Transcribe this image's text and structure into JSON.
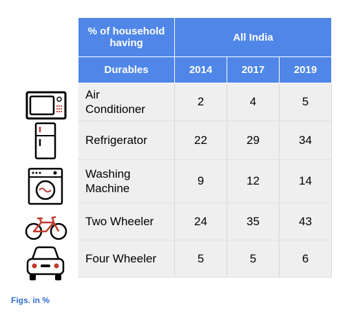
{
  "header": {
    "corner_label": "% of household having",
    "group_label": "All India",
    "durables_label": "Durables",
    "years": [
      "2014",
      "2017",
      "2019"
    ]
  },
  "rows": [
    {
      "name": "Air Conditioner",
      "values": [
        "2",
        "4",
        "5"
      ],
      "icon": "air-conditioner-icon"
    },
    {
      "name": "Refrigerator",
      "values": [
        "22",
        "29",
        "34"
      ],
      "icon": "refrigerator-icon"
    },
    {
      "name": "Washing Machine",
      "values": [
        "9",
        "12",
        "14"
      ],
      "icon": "washing-machine-icon"
    },
    {
      "name": "Two Wheeler",
      "values": [
        "24",
        "35",
        "43"
      ],
      "icon": "bicycle-icon"
    },
    {
      "name": "Four Wheeler",
      "values": [
        "5",
        "5",
        "6"
      ],
      "icon": "car-icon"
    }
  ],
  "footnote": "Figs. in %",
  "colors": {
    "header_bg": "#4f86e8",
    "cell_bg": "#efefef",
    "footnote": "#2f6fd0",
    "icon_accent": "#c0392b"
  }
}
